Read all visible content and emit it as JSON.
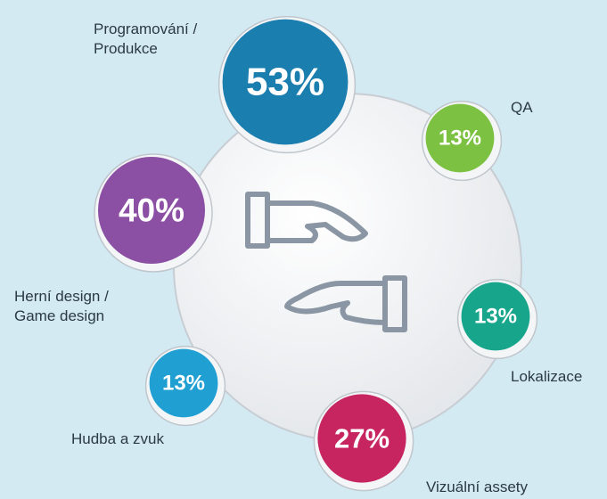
{
  "chart_data": {
    "type": "bubble",
    "categories": [
      "Programování / Produkce",
      "QA",
      "Lokalizace",
      "Vizuální assety",
      "Hudba a zvuk",
      "Herní design / Game design"
    ],
    "values": [
      53,
      13,
      13,
      27,
      13,
      40
    ],
    "value_labels": [
      "53%",
      "13%",
      "13%",
      "27%",
      "13%",
      "40%"
    ],
    "colors": [
      "#1a7eae",
      "#7cc142",
      "#17a68c",
      "#c7255f",
      "#1f9fd2",
      "#8b4fa4"
    ]
  }
}
